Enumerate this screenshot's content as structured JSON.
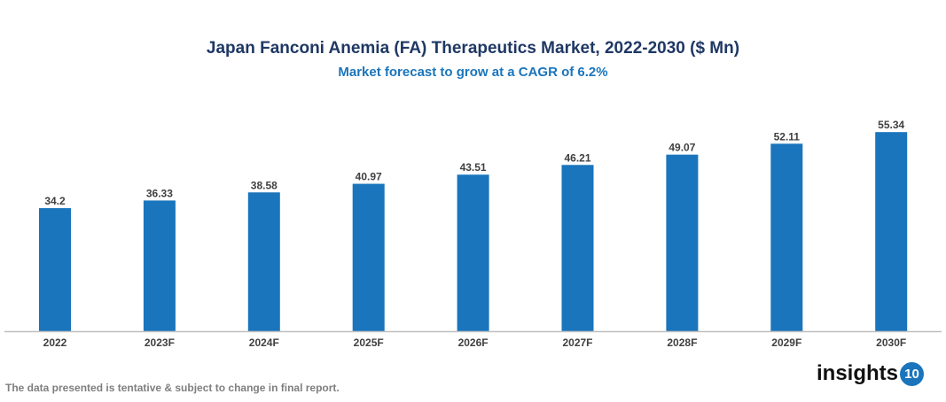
{
  "chart_data": {
    "type": "bar",
    "title": "Japan Fanconi Anemia (FA) Therapeutics Market, 2022-2030 ($ Mn)",
    "subtitle": "Market forecast to grow at a CAGR of 6.2%",
    "categories": [
      "2022",
      "2023F",
      "2024F",
      "2025F",
      "2026F",
      "2027F",
      "2028F",
      "2029F",
      "2030F"
    ],
    "values": [
      34.2,
      36.33,
      38.58,
      40.97,
      43.51,
      46.21,
      49.07,
      52.11,
      55.34
    ],
    "labels": [
      "34.2",
      "36.33",
      "38.58",
      "40.97",
      "43.51",
      "46.21",
      "49.07",
      "52.11",
      "55.34"
    ],
    "xlabel": "",
    "ylabel": "",
    "ylim": [
      0,
      64
    ],
    "grid": false,
    "bar_color": "#1a75bc"
  },
  "footer": {
    "note": "The data presented is tentative & subject to change in final report.",
    "logo_text": "insights",
    "logo_badge": "10"
  }
}
